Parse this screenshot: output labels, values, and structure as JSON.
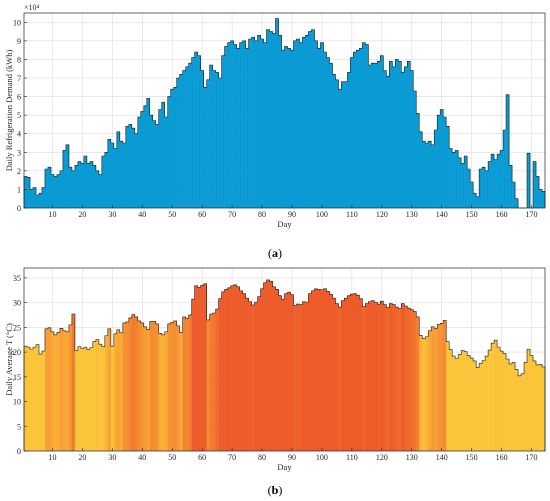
{
  "charts": [
    {
      "type": "bar",
      "xlabel": "Day",
      "ylabel": "Daily Refrigeration Demand (kWh)",
      "ylim": [
        0,
        10.5
      ],
      "xlim": [
        0.5,
        174.5
      ],
      "y_multiplier": "×10⁴",
      "xticks": [
        10,
        20,
        30,
        40,
        50,
        60,
        70,
        80,
        90,
        100,
        110,
        120,
        130,
        140,
        150,
        160,
        170
      ],
      "yticks": [
        0,
        1,
        2,
        3,
        4,
        5,
        6,
        7,
        8,
        9,
        10
      ],
      "grid": true,
      "color": "#0a9bd4",
      "caption": "(a)",
      "caption_letter": "a",
      "values": [
        1.7,
        1.65,
        1.0,
        1.1,
        0.7,
        0.8,
        1.1,
        2.1,
        2.2,
        1.8,
        1.7,
        1.8,
        2.0,
        3.1,
        3.4,
        2.2,
        2.0,
        2.3,
        2.5,
        2.4,
        2.8,
        2.4,
        2.5,
        2.3,
        2.0,
        1.8,
        2.8,
        3.0,
        3.7,
        3.5,
        3.2,
        4.1,
        3.6,
        3.5,
        4.4,
        4.5,
        4.3,
        4.0,
        4.9,
        5.2,
        5.5,
        5.9,
        5.0,
        4.7,
        4.5,
        5.3,
        5.7,
        4.9,
        6.0,
        6.4,
        6.5,
        7.0,
        7.2,
        7.4,
        7.6,
        7.8,
        8.1,
        8.4,
        8.2,
        7.4,
        6.5,
        6.9,
        7.7,
        7.4,
        7.3,
        7.0,
        8.2,
        8.7,
        8.9,
        9.0,
        8.8,
        8.6,
        8.9,
        9.0,
        8.6,
        9.1,
        9.2,
        9.0,
        9.3,
        9.1,
        8.9,
        9.6,
        9.5,
        9.4,
        10.2,
        9.3,
        8.5,
        8.7,
        8.6,
        8.5,
        9.0,
        9.1,
        8.9,
        9.2,
        9.3,
        9.5,
        9.6,
        9.0,
        8.6,
        8.9,
        8.4,
        8.1,
        7.8,
        7.2,
        6.9,
        6.4,
        6.8,
        6.8,
        7.3,
        8.1,
        8.4,
        8.5,
        8.6,
        8.9,
        8.8,
        7.7,
        7.8,
        7.8,
        7.9,
        8.2,
        7.4,
        7.1,
        7.9,
        7.6,
        8.0,
        7.9,
        7.3,
        7.6,
        7.9,
        7.4,
        6.3,
        5.1,
        4.1,
        3.6,
        3.5,
        3.6,
        3.4,
        4.2,
        5.0,
        5.3,
        4.9,
        4.4,
        3.2,
        3.0,
        3.1,
        2.7,
        2.4,
        2.8,
        2.1,
        1.4,
        0.8,
        0.6,
        2.1,
        2.2,
        2.0,
        2.5,
        2.9,
        2.6,
        2.9,
        3.1,
        4.2,
        6.1,
        2.3,
        1.4,
        0.5,
        0.0,
        0.0,
        0.0,
        2.95,
        0.0,
        2.5,
        1.7,
        1.0,
        0.9
      ]
    },
    {
      "type": "bar",
      "xlabel": "Day",
      "ylabel": "Daily Average T (°C)",
      "ylim": [
        0,
        37
      ],
      "xlim": [
        0.5,
        174.5
      ],
      "xticks": [
        10,
        20,
        30,
        40,
        50,
        60,
        70,
        80,
        90,
        100,
        110,
        120,
        130,
        140,
        150,
        160,
        170
      ],
      "yticks": [
        0,
        5,
        10,
        15,
        20,
        25,
        30,
        35
      ],
      "grid": true,
      "color_low": "#fbc53a",
      "color_high": "#ee5b2b",
      "caption": "(b)",
      "caption_letter": "b",
      "values": [
        21.2,
        21.0,
        20.6,
        21.0,
        21.5,
        19.6,
        20.2,
        24.7,
        24.9,
        24.1,
        23.5,
        24.0,
        24.8,
        24.3,
        24.1,
        25.5,
        27.7,
        20.3,
        21.1,
        20.7,
        21.0,
        20.5,
        20.9,
        22.1,
        22.5,
        21.6,
        21.1,
        23.3,
        24.7,
        21.2,
        23.7,
        24.5,
        23.9,
        25.9,
        26.1,
        26.9,
        27.6,
        27.1,
        26.3,
        25.9,
        25.1,
        24.6,
        26.2,
        26.2,
        25.7,
        23.8,
        23.5,
        24.1,
        25.7,
        26.0,
        26.3,
        25.3,
        24.0,
        27.1,
        26.8,
        27.5,
        30.7,
        33.4,
        33.1,
        33.5,
        33.8,
        26.5,
        27.7,
        27.9,
        28.7,
        30.8,
        32.2,
        32.7,
        33.0,
        33.4,
        33.6,
        33.2,
        32.4,
        31.8,
        30.9,
        30.2,
        29.5,
        30.1,
        31.2,
        32.8,
        34.0,
        34.6,
        34.3,
        33.2,
        32.7,
        31.4,
        30.7,
        31.8,
        32.1,
        31.6,
        29.4,
        29.7,
        29.6,
        30.2,
        30.1,
        31.8,
        32.4,
        32.8,
        32.7,
        32.6,
        32.8,
        32.3,
        31.7,
        30.9,
        29.8,
        29.1,
        30.4,
        30.9,
        31.4,
        31.7,
        31.8,
        31.5,
        30.8,
        29.2,
        29.8,
        30.2,
        30.4,
        30.1,
        29.7,
        30.3,
        29.6,
        29.0,
        29.8,
        29.6,
        29.1,
        28.8,
        29.8,
        29.3,
        28.9,
        28.6,
        28.2,
        27.1,
        23.4,
        22.7,
        23.1,
        24.3,
        25.1,
        24.8,
        25.6,
        25.8,
        26.4,
        22.1,
        20.5,
        19.2,
        18.7,
        19.5,
        20.3,
        20.1,
        19.3,
        18.8,
        18.2,
        16.9,
        17.7,
        18.3,
        19.2,
        20.4,
        21.8,
        22.4,
        21.0,
        20.2,
        19.7,
        18.6,
        17.6,
        17.9,
        16.5,
        15.2,
        15.6,
        17.9,
        20.6,
        19.3,
        18.2,
        17.4,
        17.5,
        17.0
      ]
    }
  ]
}
